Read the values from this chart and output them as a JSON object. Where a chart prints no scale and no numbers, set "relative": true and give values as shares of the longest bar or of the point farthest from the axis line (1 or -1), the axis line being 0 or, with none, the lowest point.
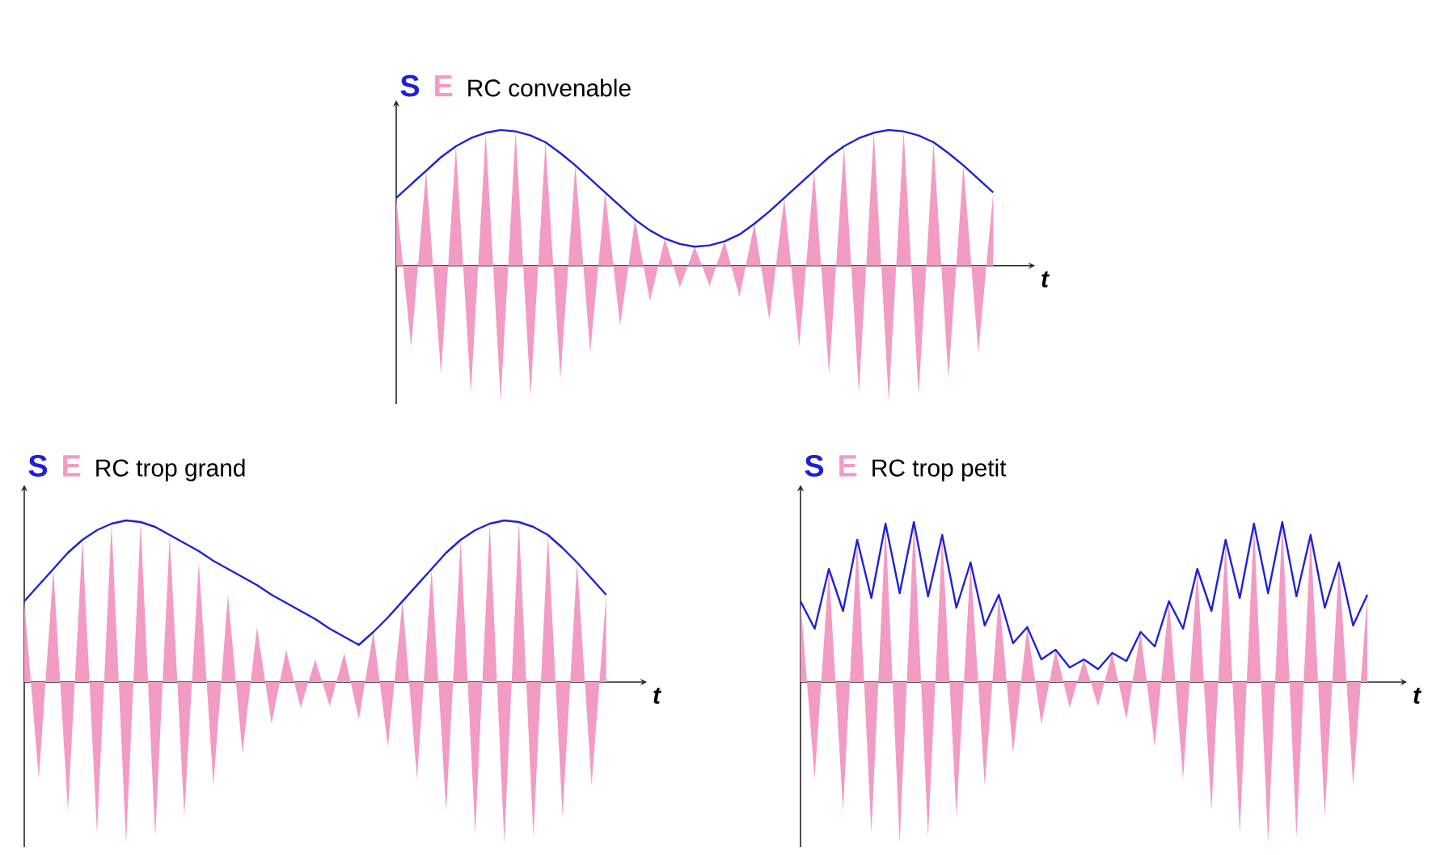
{
  "chart_data": [
    {
      "type": "line",
      "title": "RC convenable",
      "xlabel": "t",
      "relative": true,
      "legend": "top left",
      "categories": [
        null,
        null,
        null,
        null,
        null,
        null,
        null,
        null,
        null,
        null,
        null,
        null,
        null,
        null,
        null,
        null,
        null,
        null,
        null,
        null,
        null,
        null,
        null,
        null,
        null,
        null,
        null,
        null,
        null,
        null,
        null,
        null,
        null,
        null,
        null,
        null,
        null,
        null,
        null,
        null,
        null
      ],
      "series": [
        {
          "name": "E",
          "type": "area",
          "color": "#f29bc4",
          "values": [
            0.5,
            -0.6,
            0.7,
            -0.8,
            0.88,
            -0.94,
            0.98,
            -1.0,
            0.99,
            -0.96,
            0.91,
            -0.83,
            0.74,
            -0.64,
            0.54,
            -0.44,
            0.34,
            -0.26,
            0.2,
            -0.16,
            0.14,
            -0.15,
            0.18,
            -0.23,
            0.31,
            -0.4,
            0.5,
            -0.6,
            0.7,
            -0.8,
            0.88,
            -0.94,
            0.98,
            -1.0,
            0.99,
            -0.96,
            0.91,
            -0.83,
            0.74,
            -0.64,
            0.54
          ]
        },
        {
          "name": "S",
          "color": "#2020d8",
          "values": [
            0.5,
            0.6,
            0.7,
            0.8,
            0.88,
            0.94,
            0.98,
            1.0,
            0.99,
            0.96,
            0.91,
            0.83,
            0.74,
            0.64,
            0.54,
            0.44,
            0.34,
            0.26,
            0.2,
            0.16,
            0.14,
            0.15,
            0.18,
            0.23,
            0.31,
            0.4,
            0.5,
            0.6,
            0.7,
            0.8,
            0.88,
            0.94,
            0.98,
            1.0,
            0.99,
            0.96,
            0.91,
            0.83,
            0.74,
            0.64,
            0.54
          ]
        }
      ]
    },
    {
      "type": "line",
      "title": "RC trop grand",
      "xlabel": "t",
      "relative": true,
      "legend": "top left",
      "categories": [
        null,
        null,
        null,
        null,
        null,
        null,
        null,
        null,
        null,
        null,
        null,
        null,
        null,
        null,
        null,
        null,
        null,
        null,
        null,
        null,
        null,
        null,
        null,
        null,
        null,
        null,
        null,
        null,
        null,
        null,
        null,
        null,
        null,
        null,
        null,
        null,
        null,
        null,
        null,
        null,
        null
      ],
      "series": [
        {
          "name": "E",
          "type": "area",
          "color": "#f29bc4",
          "values": [
            0.5,
            -0.6,
            0.7,
            -0.8,
            0.88,
            -0.94,
            0.98,
            -1.0,
            0.99,
            -0.96,
            0.91,
            -0.83,
            0.74,
            -0.64,
            0.54,
            -0.44,
            0.34,
            -0.26,
            0.2,
            -0.16,
            0.14,
            -0.15,
            0.18,
            -0.23,
            0.31,
            -0.4,
            0.5,
            -0.6,
            0.7,
            -0.8,
            0.88,
            -0.94,
            0.98,
            -1.0,
            0.99,
            -0.96,
            0.91,
            -0.83,
            0.74,
            -0.64,
            0.54
          ]
        },
        {
          "name": "S",
          "color": "#2020d8",
          "values": [
            0.5,
            0.6,
            0.7,
            0.8,
            0.88,
            0.94,
            0.98,
            1.0,
            0.99,
            0.96,
            0.91,
            0.86,
            0.81,
            0.75,
            0.7,
            0.65,
            0.6,
            0.54,
            0.49,
            0.44,
            0.39,
            0.33,
            0.28,
            0.23,
            0.31,
            0.4,
            0.5,
            0.6,
            0.7,
            0.8,
            0.88,
            0.94,
            0.98,
            1.0,
            0.99,
            0.96,
            0.91,
            0.83,
            0.74,
            0.64,
            0.54
          ]
        }
      ]
    },
    {
      "type": "line",
      "title": "RC trop petit",
      "xlabel": "t",
      "relative": true,
      "legend": "top left",
      "categories": [
        null,
        null,
        null,
        null,
        null,
        null,
        null,
        null,
        null,
        null,
        null,
        null,
        null,
        null,
        null,
        null,
        null,
        null,
        null,
        null,
        null,
        null,
        null,
        null,
        null,
        null,
        null,
        null,
        null,
        null,
        null,
        null,
        null,
        null,
        null,
        null,
        null,
        null,
        null,
        null,
        null
      ],
      "series": [
        {
          "name": "E",
          "type": "area",
          "color": "#f29bc4",
          "values": [
            0.5,
            -0.6,
            0.7,
            -0.8,
            0.88,
            -0.94,
            0.98,
            -1.0,
            0.99,
            -0.96,
            0.91,
            -0.83,
            0.74,
            -0.64,
            0.54,
            -0.44,
            0.34,
            -0.26,
            0.2,
            -0.16,
            0.14,
            -0.15,
            0.18,
            -0.23,
            0.31,
            -0.4,
            0.5,
            -0.6,
            0.7,
            -0.8,
            0.88,
            -0.94,
            0.98,
            -1.0,
            0.99,
            -0.96,
            0.91,
            -0.83,
            0.74,
            -0.64,
            0.54
          ]
        },
        {
          "name": "S",
          "color": "#2020d8",
          "values": [
            0.5,
            0.33,
            0.7,
            0.44,
            0.88,
            0.52,
            0.98,
            0.55,
            0.99,
            0.53,
            0.91,
            0.46,
            0.74,
            0.35,
            0.54,
            0.24,
            0.34,
            0.14,
            0.2,
            0.09,
            0.14,
            0.08,
            0.18,
            0.13,
            0.31,
            0.22,
            0.5,
            0.33,
            0.7,
            0.44,
            0.88,
            0.52,
            0.98,
            0.55,
            0.99,
            0.53,
            0.91,
            0.46,
            0.74,
            0.35,
            0.54
          ]
        }
      ]
    }
  ]
}
